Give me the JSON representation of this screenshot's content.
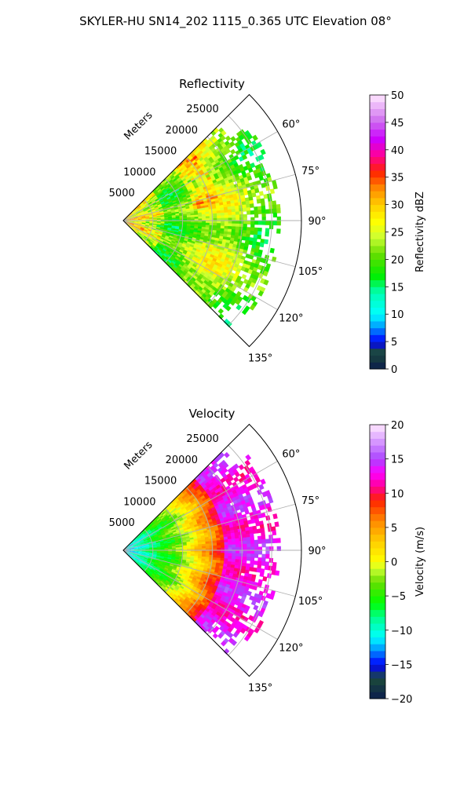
{
  "figure": {
    "suptitle": "SKYLER-HU  SN14_202  1115_0.365 UTC Elevation 08°"
  },
  "chart_data": [
    {
      "type": "heatmap",
      "subtype": "polar-sector (radar PPI)",
      "title": "Reflectivity",
      "radial_axis_label": "Meters",
      "radial_ticks": [
        "5000",
        "10000",
        "15000",
        "20000",
        "25000"
      ],
      "radial_range": [
        0,
        30000
      ],
      "azimuth_ticks": [
        "60°",
        "75°",
        "90°",
        "105°",
        "120°",
        "135°"
      ],
      "azimuth_range_deg": [
        45,
        135
      ],
      "grid": true,
      "colorbar": {
        "label": "Reflectivity dBZ",
        "ticks": [
          "0",
          "5",
          "10",
          "15",
          "20",
          "25",
          "30",
          "35",
          "40",
          "45",
          "50"
        ],
        "range": [
          0,
          50
        ],
        "stops": [
          {
            "v": 0,
            "c": "#0b1d4d"
          },
          {
            "v": 3,
            "c": "#1c4a3a"
          },
          {
            "v": 5,
            "c": "#0000ff"
          },
          {
            "v": 8,
            "c": "#00aaff"
          },
          {
            "v": 10,
            "c": "#00ffff"
          },
          {
            "v": 14,
            "c": "#00ffb0"
          },
          {
            "v": 17,
            "c": "#00ee00"
          },
          {
            "v": 21,
            "c": "#66dd00"
          },
          {
            "v": 24,
            "c": "#ccff33"
          },
          {
            "v": 27,
            "c": "#ffff00"
          },
          {
            "v": 30,
            "c": "#ffcc00"
          },
          {
            "v": 33,
            "c": "#ff8800"
          },
          {
            "v": 36,
            "c": "#ff2200"
          },
          {
            "v": 39,
            "c": "#ff0099"
          },
          {
            "v": 42,
            "c": "#cc00ff"
          },
          {
            "v": 45,
            "c": "#cc66ee"
          },
          {
            "v": 50,
            "c": "#ffe8ff"
          }
        ]
      },
      "field_summary": {
        "max_range_with_echo_m": 26500,
        "dominant_value": 22,
        "peak_value": 34
      }
    },
    {
      "type": "heatmap",
      "subtype": "polar-sector (radar PPI)",
      "title": "Velocity",
      "radial_axis_label": "Meters",
      "radial_ticks": [
        "5000",
        "10000",
        "15000",
        "20000",
        "25000"
      ],
      "radial_range": [
        0,
        30000
      ],
      "azimuth_ticks": [
        "60°",
        "75°",
        "90°",
        "105°",
        "120°",
        "135°"
      ],
      "azimuth_range_deg": [
        45,
        135
      ],
      "grid": true,
      "colorbar": {
        "label": "Velocity (m/s)",
        "ticks": [
          "−20",
          "−15",
          "−10",
          "−5",
          "0",
          "5",
          "10",
          "15",
          "20"
        ],
        "range": [
          -20,
          20
        ],
        "stops": [
          {
            "v": -20,
            "c": "#0b1d4d"
          },
          {
            "v": -17,
            "c": "#1c4a3a"
          },
          {
            "v": -15,
            "c": "#0000ff"
          },
          {
            "v": -12.5,
            "c": "#00aaff"
          },
          {
            "v": -11,
            "c": "#00ffff"
          },
          {
            "v": -8,
            "c": "#00ff88"
          },
          {
            "v": -6,
            "c": "#00ff00"
          },
          {
            "v": -3,
            "c": "#66dd00"
          },
          {
            "v": -1,
            "c": "#ccff33"
          },
          {
            "v": 0,
            "c": "#ffff00"
          },
          {
            "v": 3,
            "c": "#ffcc00"
          },
          {
            "v": 6,
            "c": "#ff8800"
          },
          {
            "v": 9,
            "c": "#ff2200"
          },
          {
            "v": 11,
            "c": "#ff0099"
          },
          {
            "v": 13,
            "c": "#ff00ff"
          },
          {
            "v": 15,
            "c": "#aa44ff"
          },
          {
            "v": 20,
            "c": "#ffe8ff"
          }
        ]
      },
      "field_summary": {
        "max_range_with_echo_m": 26500,
        "near_range_value": -12,
        "mid_range_value": -3,
        "far_range_value": 13
      }
    }
  ]
}
